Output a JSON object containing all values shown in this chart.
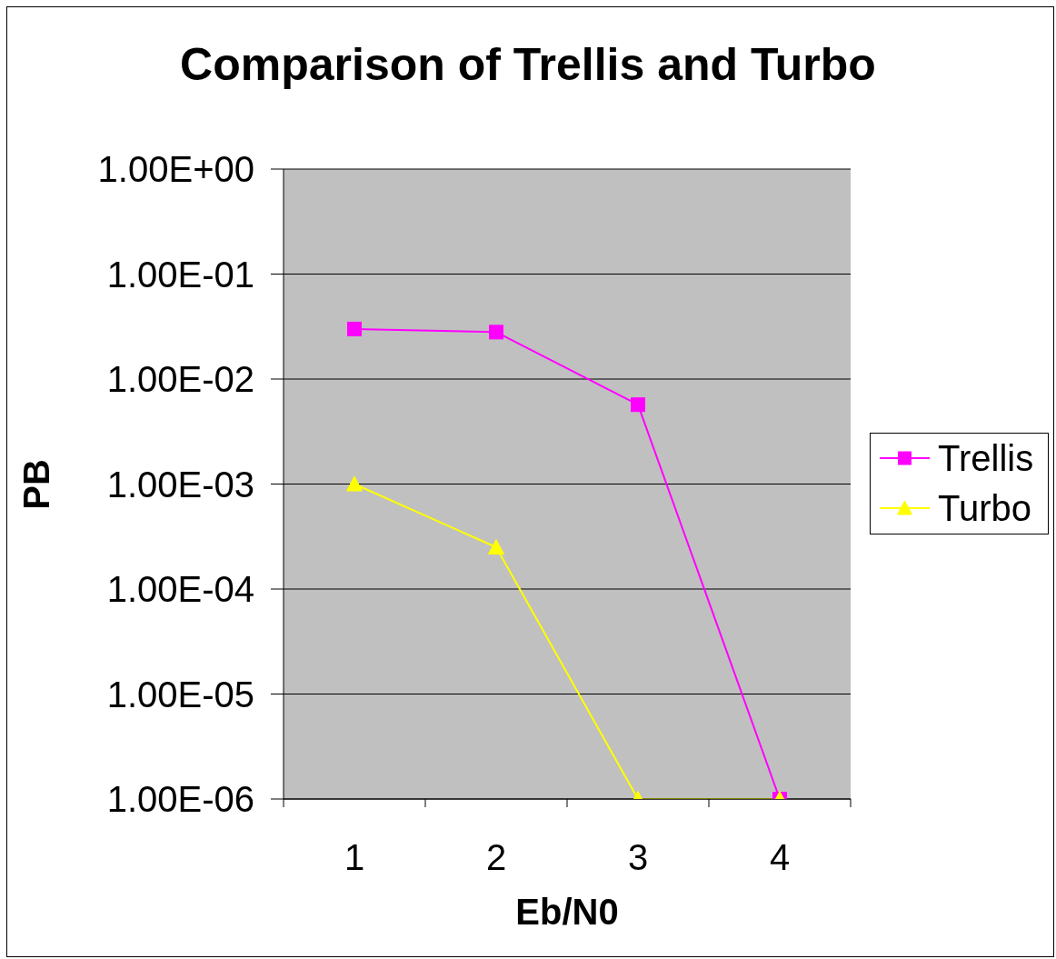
{
  "chart_data": {
    "type": "line",
    "title": "Comparison of Trellis and Turbo",
    "xlabel": "Eb/N0",
    "ylabel": "PB",
    "categories": [
      "1",
      "2",
      "3",
      "4"
    ],
    "series": [
      {
        "name": "Trellis",
        "color": "#ff00ff",
        "marker": "square",
        "values": [
          0.03,
          0.028,
          0.0057,
          1e-06
        ]
      },
      {
        "name": "Turbo",
        "color": "#ffff00",
        "marker": "triangle",
        "values": [
          0.001,
          0.00025,
          1e-06,
          1e-06
        ]
      }
    ],
    "log": true,
    "ylim": [
      1e-06,
      1
    ],
    "yticks": [
      {
        "value": 1e-06,
        "label": "1.00E-06"
      },
      {
        "value": 1e-05,
        "label": "1.00E-05"
      },
      {
        "value": 0.0001,
        "label": "1.00E-04"
      },
      {
        "value": 0.001,
        "label": "1.00E-03"
      },
      {
        "value": 0.01,
        "label": "1.00E-02"
      },
      {
        "value": 0.1,
        "label": "1.00E-01"
      },
      {
        "value": 1,
        "label": "1.00E+00"
      }
    ],
    "grid": "y",
    "legend": "right"
  }
}
